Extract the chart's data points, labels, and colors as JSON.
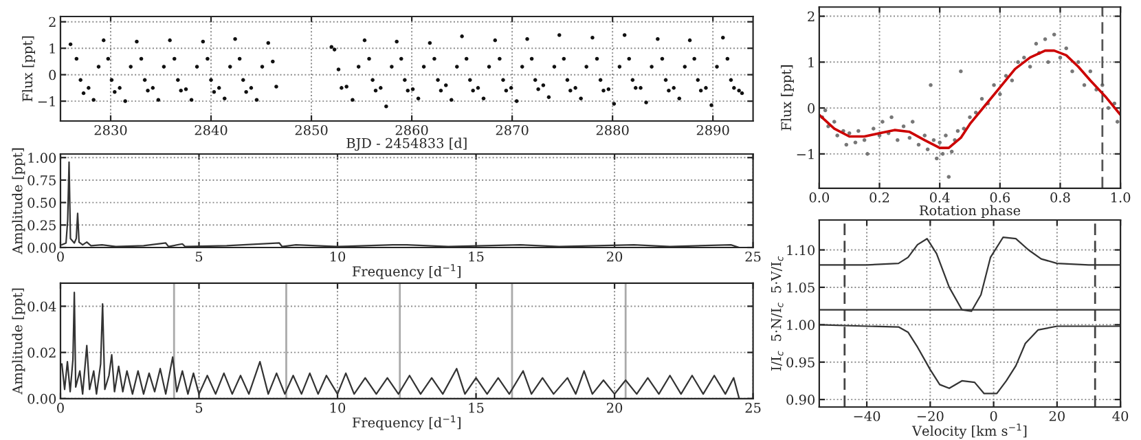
{
  "chart_data": [
    {
      "type": "scatter",
      "xlabel": "BJD - 2454833 [d]",
      "ylabel": "Flux [ppt]",
      "grid": true,
      "xlim": [
        2825,
        2894
      ],
      "xticks": [
        2830,
        2840,
        2850,
        2860,
        2870,
        2880,
        2890
      ],
      "ylim": [
        -1.75,
        2.2
      ],
      "yticks": [
        {
          "value": -1,
          "label": "−1"
        },
        0,
        1,
        2
      ],
      "series": [
        {
          "color": "#111111",
          "marker": "circle",
          "x": [
            2826.0,
            2826.6,
            2827.0,
            2827.3,
            2827.8,
            2828.3,
            2828.8,
            2829.3,
            2829.75,
            2830.1,
            2830.4,
            2830.9,
            2831.45,
            2832.0,
            2832.6,
            2833.05,
            2833.4,
            2833.7,
            2834.2,
            2834.75,
            2835.3,
            2835.9,
            2836.35,
            2836.7,
            2837.0,
            2837.5,
            2838.05,
            2838.6,
            2839.2,
            2839.65,
            2840.0,
            2840.3,
            2840.8,
            2841.35,
            2841.9,
            2842.4,
            2842.85,
            2843.2,
            2843.5,
            2844.0,
            2844.55,
            2845.1,
            2845.7,
            2846.15,
            2846.5,
            2852.0,
            2852.3,
            2852.7,
            2853.0,
            2853.5,
            2854.1,
            2854.7,
            2855.3,
            2855.75,
            2856.1,
            2856.4,
            2856.9,
            2857.45,
            2858.0,
            2858.5,
            2858.95,
            2859.3,
            2859.6,
            2860.1,
            2860.65,
            2861.2,
            2861.8,
            2862.25,
            2862.6,
            2862.9,
            2863.4,
            2863.95,
            2864.5,
            2865.0,
            2865.45,
            2865.8,
            2866.1,
            2866.6,
            2867.15,
            2867.7,
            2868.3,
            2868.75,
            2869.1,
            2869.4,
            2869.9,
            2870.45,
            2871.0,
            2871.5,
            2871.95,
            2872.3,
            2872.6,
            2873.1,
            2873.65,
            2874.2,
            2874.7,
            2875.15,
            2875.5,
            2875.8,
            2876.3,
            2876.85,
            2877.4,
            2878.0,
            2878.45,
            2878.8,
            2879.1,
            2879.6,
            2880.15,
            2880.7,
            2881.2,
            2881.65,
            2882.0,
            2882.3,
            2882.8,
            2883.35,
            2883.9,
            2884.5,
            2884.95,
            2885.3,
            2885.6,
            2886.1,
            2886.65,
            2887.2,
            2887.7,
            2888.15,
            2888.5,
            2888.8,
            2889.3,
            2889.85,
            2890.4,
            2891.0,
            2891.45,
            2891.8,
            2892.1,
            2892.6,
            2892.9
          ],
          "values": [
            1.15,
            0.6,
            -0.2,
            -0.7,
            -0.5,
            -0.95,
            0.3,
            1.3,
            0.6,
            -0.2,
            -0.65,
            -0.5,
            -1.0,
            0.3,
            1.25,
            0.6,
            -0.2,
            -0.6,
            -0.5,
            -0.95,
            0.3,
            1.3,
            0.6,
            -0.2,
            -0.6,
            -0.55,
            -0.95,
            0.3,
            1.25,
            0.6,
            -0.2,
            -0.65,
            -0.5,
            -0.9,
            0.3,
            1.35,
            0.6,
            -0.2,
            -0.65,
            -0.5,
            -0.95,
            0.3,
            1.2,
            0.5,
            -0.45,
            1.05,
            0.95,
            0.2,
            -0.5,
            -0.45,
            -0.95,
            0.3,
            1.3,
            0.6,
            -0.2,
            -0.6,
            -0.5,
            -1.2,
            0.3,
            1.25,
            0.6,
            -0.2,
            -0.6,
            -0.55,
            -0.9,
            0.3,
            1.2,
            0.6,
            -0.2,
            -0.6,
            -0.4,
            -0.95,
            0.3,
            1.45,
            0.6,
            -0.2,
            -0.6,
            -0.5,
            -0.9,
            0.3,
            1.3,
            0.6,
            -0.2,
            -0.6,
            -0.5,
            -1.0,
            0.3,
            1.35,
            0.6,
            -0.2,
            -0.55,
            -0.4,
            -0.85,
            0.3,
            1.5,
            0.6,
            -0.2,
            -0.6,
            -0.5,
            -0.9,
            0.3,
            1.4,
            0.6,
            -0.2,
            -0.6,
            -0.55,
            -1.1,
            0.3,
            1.5,
            0.6,
            -0.2,
            -0.5,
            -0.5,
            -1.05,
            0.3,
            1.35,
            0.6,
            -0.2,
            -0.6,
            -0.5,
            -0.9,
            0.3,
            1.3,
            0.6,
            -0.2,
            -0.6,
            -0.5,
            -1.15,
            0.3,
            1.4,
            0.6,
            -0.2,
            -0.5,
            -0.6,
            -0.7
          ]
        }
      ]
    },
    {
      "type": "line",
      "xlabel": "Frequency [d$^{−1}$]",
      "ylabel": "Amplitude [ppt]",
      "grid": true,
      "xlim": [
        0,
        25
      ],
      "xticks": [
        0,
        5,
        10,
        15,
        20,
        25
      ],
      "ylim": [
        0,
        1.04
      ],
      "yticks": [
        {
          "value": 0,
          "label": "0.00"
        },
        {
          "value": 0.25,
          "label": "0.25"
        },
        {
          "value": 0.5,
          "label": "0.50"
        },
        {
          "value": 0.75,
          "label": "0.75"
        },
        {
          "value": 1,
          "label": "1.00"
        }
      ],
      "series": [
        {
          "color": "#333333",
          "x": [
            0.05,
            0.2,
            0.26,
            0.31,
            0.36,
            0.5,
            0.57,
            0.62,
            0.67,
            0.8,
            0.95,
            1.1,
            1.5,
            2.0,
            3.0,
            3.8,
            3.9,
            4.4,
            4.5,
            6.0,
            7.9,
            8.0,
            8.5,
            10.0,
            12.0,
            12.5,
            14.0,
            16.6,
            18.0,
            20.7,
            22.0,
            24.2,
            24.5
          ],
          "values": [
            0.03,
            0.05,
            0.3,
            0.95,
            0.1,
            0.05,
            0.1,
            0.38,
            0.06,
            0.03,
            0.06,
            0.02,
            0.03,
            0.01,
            0.02,
            0.05,
            0.01,
            0.04,
            0.01,
            0.02,
            0.05,
            0.01,
            0.03,
            0.01,
            0.03,
            0.03,
            0.01,
            0.03,
            0.01,
            0.03,
            0.01,
            0.03,
            0.0
          ]
        }
      ]
    },
    {
      "type": "line",
      "xlabel": "Frequency [d$^{−1}$]",
      "ylabel": "Amplitude [ppt]",
      "grid": true,
      "xlim": [
        0,
        25
      ],
      "xticks": [
        0,
        5,
        10,
        15,
        20,
        25
      ],
      "ylim": [
        0,
        0.05
      ],
      "yticks": [
        {
          "value": 0,
          "label": "0.00"
        },
        {
          "value": 0.02,
          "label": "0.02"
        },
        {
          "value": 0.04,
          "label": "0.04"
        }
      ],
      "ref_lines": [
        {
          "axis": "x",
          "value": 4.1,
          "color": "#aaaaaa",
          "line_style": "solid"
        },
        {
          "axis": "x",
          "value": 8.15,
          "color": "#aaaaaa",
          "line_style": "solid"
        },
        {
          "axis": "x",
          "value": 12.25,
          "color": "#aaaaaa",
          "line_style": "solid"
        },
        {
          "axis": "x",
          "value": 16.3,
          "color": "#aaaaaa",
          "line_style": "solid"
        },
        {
          "axis": "x",
          "value": 20.4,
          "color": "#aaaaaa",
          "line_style": "solid"
        }
      ],
      "series": [
        {
          "color": "#333333",
          "x": [
            0.05,
            0.15,
            0.25,
            0.35,
            0.45,
            0.5,
            0.55,
            0.7,
            0.8,
            0.95,
            1.05,
            1.2,
            1.3,
            1.45,
            1.52,
            1.6,
            1.75,
            1.85,
            1.95,
            2.1,
            2.25,
            2.4,
            2.6,
            2.8,
            3.0,
            3.2,
            3.4,
            3.6,
            3.8,
            4.05,
            4.2,
            4.4,
            4.6,
            4.8,
            5.0,
            5.3,
            5.6,
            5.9,
            6.2,
            6.5,
            6.8,
            7.2,
            7.5,
            7.8,
            8.1,
            8.4,
            8.7,
            9.0,
            9.3,
            9.6,
            10.0,
            10.3,
            10.6,
            11.0,
            11.4,
            11.8,
            12.2,
            12.6,
            13.0,
            13.4,
            13.8,
            14.3,
            14.6,
            15.0,
            15.4,
            15.8,
            16.2,
            16.7,
            17.0,
            17.4,
            17.8,
            18.3,
            18.6,
            18.9,
            19.2,
            19.6,
            20.0,
            20.4,
            20.8,
            21.2,
            21.6,
            22.0,
            22.4,
            22.8,
            23.2,
            23.6,
            24.0,
            24.3,
            24.5
          ],
          "values": [
            0.015,
            0.004,
            0.016,
            0.003,
            0.017,
            0.046,
            0.005,
            0.012,
            0.002,
            0.023,
            0.004,
            0.012,
            0.002,
            0.015,
            0.041,
            0.004,
            0.01,
            0.019,
            0.003,
            0.014,
            0.003,
            0.012,
            0.002,
            0.012,
            0.002,
            0.011,
            0.003,
            0.013,
            0.002,
            0.018,
            0.003,
            0.012,
            0.002,
            0.011,
            0.002,
            0.01,
            0.002,
            0.011,
            0.002,
            0.01,
            0.002,
            0.016,
            0.002,
            0.011,
            0.002,
            0.01,
            0.002,
            0.011,
            0.002,
            0.01,
            0.002,
            0.011,
            0.002,
            0.009,
            0.002,
            0.009,
            0.002,
            0.01,
            0.002,
            0.009,
            0.002,
            0.013,
            0.002,
            0.009,
            0.002,
            0.009,
            0.002,
            0.012,
            0.002,
            0.009,
            0.002,
            0.009,
            0.002,
            0.012,
            0.002,
            0.008,
            0.002,
            0.008,
            0.002,
            0.009,
            0.002,
            0.01,
            0.002,
            0.01,
            0.002,
            0.01,
            0.002,
            0.009,
            0.0
          ]
        }
      ]
    },
    {
      "type": "scatter",
      "xlabel": "Rotation phase",
      "ylabel": "Flux [ppt]",
      "grid": true,
      "xlim": [
        0,
        1
      ],
      "xticks": [
        {
          "value": 0,
          "label": "0.0"
        },
        {
          "value": 0.2,
          "label": "0.2"
        },
        {
          "value": 0.4,
          "label": "0.4"
        },
        {
          "value": 0.6,
          "label": "0.6"
        },
        {
          "value": 0.8,
          "label": "0.8"
        },
        {
          "value": 1,
          "label": "1.0"
        }
      ],
      "ylim": [
        -1.75,
        2.2
      ],
      "yticks": [
        {
          "value": -1,
          "label": "−1"
        },
        0,
        1,
        2
      ],
      "ref_lines": [
        {
          "axis": "x",
          "value": 0.94,
          "color": "#555555",
          "line_style": "dashed"
        }
      ],
      "series": [
        {
          "color": "#777777",
          "marker": "circle",
          "x": [
            0.01,
            0.02,
            0.03,
            0.05,
            0.06,
            0.08,
            0.09,
            0.1,
            0.12,
            0.13,
            0.15,
            0.16,
            0.18,
            0.2,
            0.21,
            0.23,
            0.24,
            0.26,
            0.28,
            0.3,
            0.31,
            0.33,
            0.35,
            0.36,
            0.37,
            0.38,
            0.39,
            0.4,
            0.41,
            0.42,
            0.43,
            0.44,
            0.45,
            0.46,
            0.47,
            0.48,
            0.5,
            0.52,
            0.54,
            0.56,
            0.58,
            0.6,
            0.62,
            0.64,
            0.66,
            0.68,
            0.7,
            0.72,
            0.73,
            0.75,
            0.76,
            0.78,
            0.8,
            0.82,
            0.84,
            0.86,
            0.88,
            0.9,
            0.92,
            0.94,
            0.96,
            0.98,
            0.99
          ],
          "values": [
            -0.2,
            -0.05,
            -0.4,
            -0.3,
            -0.6,
            -0.5,
            -0.8,
            -0.55,
            -0.75,
            -0.5,
            -0.7,
            -1.0,
            -0.45,
            -0.6,
            -0.3,
            -0.55,
            -0.2,
            -0.7,
            -0.4,
            -0.65,
            -0.3,
            -0.8,
            -0.6,
            -0.9,
            0.5,
            -0.7,
            -1.1,
            -0.75,
            -1.0,
            -0.6,
            -1.5,
            -0.95,
            -0.7,
            -0.5,
            0.8,
            -0.45,
            -0.2,
            -0.1,
            0.2,
            0.1,
            0.5,
            0.3,
            0.7,
            0.6,
            1.0,
            1.1,
            0.9,
            1.4,
            1.2,
            1.5,
            1.0,
            1.6,
            1.1,
            1.3,
            0.8,
            1.0,
            0.5,
            0.8,
            0.4,
            0.5,
            0.0,
            0.1,
            -0.3
          ]
        },
        {
          "type": "line",
          "color": "#cc0000",
          "x": [
            0,
            0.05,
            0.1,
            0.15,
            0.2,
            0.25,
            0.3,
            0.35,
            0.4,
            0.43,
            0.47,
            0.5,
            0.55,
            0.6,
            0.65,
            0.7,
            0.75,
            0.78,
            0.82,
            0.86,
            0.9,
            0.95,
            1.0
          ],
          "values": [
            -0.15,
            -0.45,
            -0.62,
            -0.62,
            -0.55,
            -0.48,
            -0.52,
            -0.7,
            -0.87,
            -0.87,
            -0.65,
            -0.35,
            0.05,
            0.45,
            0.85,
            1.1,
            1.25,
            1.25,
            1.15,
            0.9,
            0.6,
            0.25,
            -0.15
          ]
        }
      ]
    },
    {
      "type": "line",
      "xlabel": "Velocity [km s$^{−1}$]",
      "ylabel": "I/I$_{c}$  5·N/I$_{c}$  5·V/I$_{c}$",
      "grid": true,
      "xlim": [
        -55,
        40
      ],
      "xticks": [
        {
          "value": -40,
          "label": "−40"
        },
        {
          "value": -20,
          "label": "−20"
        },
        0,
        20,
        40
      ],
      "ylim": [
        0.89,
        1.14
      ],
      "yticks": [
        {
          "value": 0.9,
          "label": "0.90"
        },
        {
          "value": 0.95,
          "label": "0.95"
        },
        {
          "value": 1.0,
          "label": "1.00"
        },
        {
          "value": 1.05,
          "label": "1.05"
        },
        {
          "value": 1.1,
          "label": "1.10"
        }
      ],
      "ref_lines": [
        {
          "axis": "x",
          "value": -47,
          "color": "#444444",
          "line_style": "dashed"
        },
        {
          "axis": "x",
          "value": 32,
          "color": "#444444",
          "line_style": "dashed"
        }
      ],
      "series": [
        {
          "color": "#333333",
          "x": [
            -55,
            -40,
            -30,
            -27,
            -24,
            -21,
            -18,
            -14,
            -10,
            -7,
            -4,
            -1,
            3,
            7,
            11,
            15,
            20,
            30,
            40
          ],
          "values": [
            1.08,
            1.08,
            1.082,
            1.09,
            1.107,
            1.115,
            1.095,
            1.05,
            1.02,
            1.018,
            1.04,
            1.09,
            1.117,
            1.115,
            1.1,
            1.088,
            1.082,
            1.08,
            1.08
          ]
        },
        {
          "color": "#333333",
          "x": [
            -55,
            -30,
            -10,
            10,
            40
          ],
          "values": [
            1.02,
            1.02,
            1.02,
            1.02,
            1.02
          ]
        },
        {
          "color": "#333333",
          "x": [
            -55,
            -40,
            -30,
            -27,
            -24,
            -20,
            -17,
            -14,
            -10,
            -6,
            -3,
            1,
            4,
            7,
            10,
            14,
            20,
            40
          ],
          "values": [
            1.0,
            0.998,
            0.997,
            0.99,
            0.97,
            0.94,
            0.92,
            0.915,
            0.925,
            0.923,
            0.908,
            0.908,
            0.925,
            0.945,
            0.975,
            0.993,
            0.998,
            0.998
          ]
        }
      ]
    }
  ]
}
